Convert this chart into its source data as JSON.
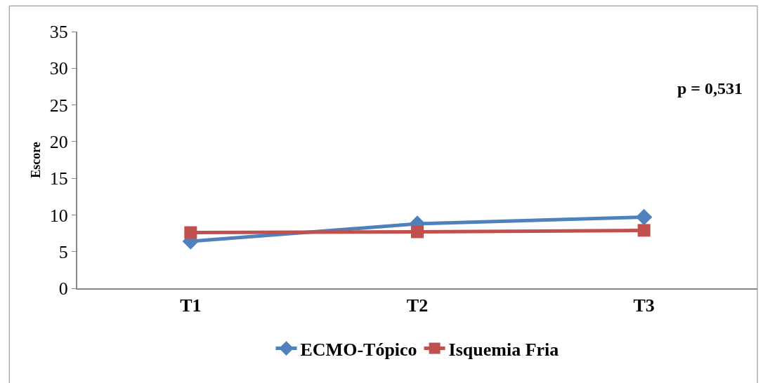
{
  "chart_data": {
    "type": "line",
    "ylabel": "Escore",
    "categories": [
      "T1",
      "T2",
      "T3"
    ],
    "series": [
      {
        "name": "ECMO-Tópico",
        "color": "#4f81bd",
        "marker": "diamond",
        "values": [
          6.4,
          8.8,
          9.7
        ]
      },
      {
        "name": "Isquemia Fria",
        "color": "#c0504d",
        "marker": "square",
        "values": [
          7.6,
          7.7,
          7.9
        ]
      }
    ],
    "ylim": [
      0,
      35
    ],
    "yticks": [
      0,
      5,
      10,
      15,
      20,
      25,
      30,
      35
    ],
    "legend": "bottom",
    "annotations": [
      "p = 0,531"
    ]
  }
}
